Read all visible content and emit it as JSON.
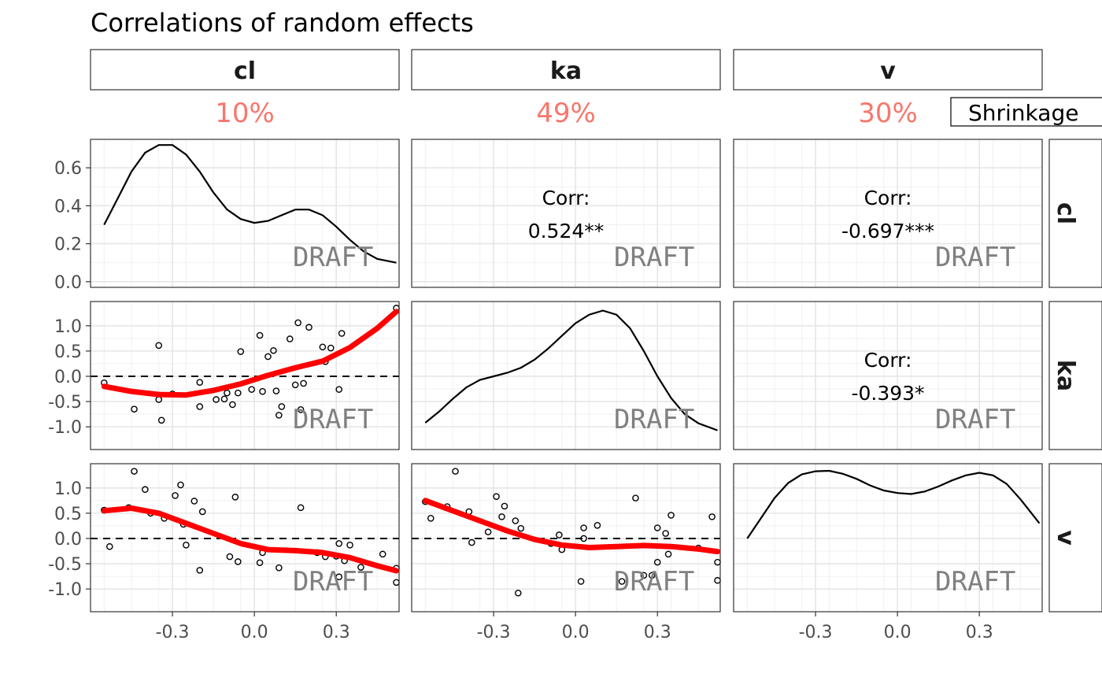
{
  "chart_data": {
    "type": "scatter",
    "title": "Correlations of random effects",
    "variables": [
      "cl",
      "ka",
      "v"
    ],
    "shrinkage": [
      "10%",
      "49%",
      "30%"
    ],
    "legend_label": "Shrinkage",
    "watermark": "DRAFT",
    "corr_label": "Corr:",
    "correlations": [
      {
        "row": "cl",
        "col": "ka",
        "value": "0.524**"
      },
      {
        "row": "cl",
        "col": "v",
        "value": "-0.697***"
      },
      {
        "row": "ka",
        "col": "v",
        "value": "-0.393*"
      }
    ],
    "x_ticks": [
      "-0.3",
      "0.0",
      "0.3"
    ],
    "x_tick_values": [
      -0.3,
      0.0,
      0.3
    ],
    "xlim": [
      -0.6,
      0.53
    ],
    "row_ylim": [
      [
        -0.03,
        0.75
      ],
      [
        -1.45,
        1.48
      ],
      [
        -1.45,
        1.48
      ]
    ],
    "y_ticks_density": [
      "0.0",
      "0.2",
      "0.4",
      "0.6"
    ],
    "y_tick_values_density": [
      0.0,
      0.2,
      0.4,
      0.6
    ],
    "y_ticks_scatter": [
      "-1.0",
      "-0.5",
      "0.0",
      "0.5",
      "1.0"
    ],
    "y_tick_values_scatter": [
      -1.0,
      -0.5,
      0.0,
      0.5,
      1.0
    ],
    "grid": true,
    "smooth_color": "#ff0000",
    "shrinkage_color": "#F8766D",
    "densities": {
      "cl": [
        [
          -0.55,
          0.3
        ],
        [
          -0.5,
          0.44
        ],
        [
          -0.45,
          0.58
        ],
        [
          -0.4,
          0.68
        ],
        [
          -0.35,
          0.72
        ],
        [
          -0.3,
          0.72
        ],
        [
          -0.25,
          0.67
        ],
        [
          -0.2,
          0.58
        ],
        [
          -0.15,
          0.47
        ],
        [
          -0.1,
          0.38
        ],
        [
          -0.05,
          0.33
        ],
        [
          0.0,
          0.31
        ],
        [
          0.05,
          0.32
        ],
        [
          0.1,
          0.35
        ],
        [
          0.15,
          0.38
        ],
        [
          0.2,
          0.38
        ],
        [
          0.25,
          0.35
        ],
        [
          0.3,
          0.29
        ],
        [
          0.35,
          0.22
        ],
        [
          0.4,
          0.16
        ],
        [
          0.45,
          0.12
        ],
        [
          0.52,
          0.1
        ]
      ],
      "ka": [
        [
          -0.55,
          -0.92
        ],
        [
          -0.5,
          -0.7
        ],
        [
          -0.45,
          -0.45
        ],
        [
          -0.4,
          -0.22
        ],
        [
          -0.35,
          -0.07
        ],
        [
          -0.3,
          0.0
        ],
        [
          -0.25,
          0.07
        ],
        [
          -0.2,
          0.17
        ],
        [
          -0.15,
          0.33
        ],
        [
          -0.1,
          0.55
        ],
        [
          -0.05,
          0.8
        ],
        [
          0.0,
          1.05
        ],
        [
          0.05,
          1.22
        ],
        [
          0.1,
          1.3
        ],
        [
          0.15,
          1.22
        ],
        [
          0.2,
          0.95
        ],
        [
          0.25,
          0.5
        ],
        [
          0.3,
          0.0
        ],
        [
          0.35,
          -0.43
        ],
        [
          0.4,
          -0.75
        ],
        [
          0.45,
          -0.93
        ],
        [
          0.52,
          -1.07
        ]
      ],
      "v": [
        [
          -0.55,
          0.0
        ],
        [
          -0.5,
          0.4
        ],
        [
          -0.45,
          0.8
        ],
        [
          -0.4,
          1.1
        ],
        [
          -0.35,
          1.27
        ],
        [
          -0.3,
          1.33
        ],
        [
          -0.25,
          1.34
        ],
        [
          -0.2,
          1.28
        ],
        [
          -0.15,
          1.18
        ],
        [
          -0.1,
          1.05
        ],
        [
          -0.05,
          0.95
        ],
        [
          0.0,
          0.9
        ],
        [
          0.05,
          0.88
        ],
        [
          0.1,
          0.93
        ],
        [
          0.15,
          1.03
        ],
        [
          0.2,
          1.15
        ],
        [
          0.25,
          1.25
        ],
        [
          0.3,
          1.3
        ],
        [
          0.35,
          1.25
        ],
        [
          0.4,
          1.08
        ],
        [
          0.45,
          0.78
        ],
        [
          0.52,
          0.3
        ]
      ]
    },
    "scatter": {
      "ka_vs_cl": {
        "points": [
          [
            -0.55,
            -0.13
          ],
          [
            -0.44,
            -0.65
          ],
          [
            -0.35,
            0.61
          ],
          [
            -0.35,
            -0.46
          ],
          [
            -0.34,
            -0.87
          ],
          [
            -0.3,
            -0.35
          ],
          [
            -0.2,
            -0.12
          ],
          [
            -0.2,
            -0.6
          ],
          [
            -0.14,
            -0.46
          ],
          [
            -0.11,
            -0.45
          ],
          [
            -0.1,
            -0.33
          ],
          [
            -0.08,
            -0.56
          ],
          [
            -0.06,
            -0.33
          ],
          [
            -0.05,
            0.49
          ],
          [
            -0.01,
            -0.26
          ],
          [
            0.02,
            0.81
          ],
          [
            0.03,
            -0.3
          ],
          [
            0.05,
            0.39
          ],
          [
            0.07,
            0.51
          ],
          [
            0.08,
            -0.29
          ],
          [
            0.09,
            -0.77
          ],
          [
            0.1,
            -0.6
          ],
          [
            0.13,
            0.74
          ],
          [
            0.15,
            -0.17
          ],
          [
            0.16,
            1.06
          ],
          [
            0.17,
            -0.66
          ],
          [
            0.18,
            -0.14
          ],
          [
            0.2,
            0.97
          ],
          [
            0.25,
            0.58
          ],
          [
            0.26,
            0.29
          ],
          [
            0.28,
            0.56
          ],
          [
            0.31,
            -0.26
          ],
          [
            0.32,
            0.85
          ],
          [
            0.52,
            1.35
          ]
        ],
        "smooth": [
          [
            -0.55,
            -0.2
          ],
          [
            -0.45,
            -0.3
          ],
          [
            -0.35,
            -0.36
          ],
          [
            -0.25,
            -0.37
          ],
          [
            -0.15,
            -0.28
          ],
          [
            -0.05,
            -0.15
          ],
          [
            0.05,
            0.02
          ],
          [
            0.15,
            0.17
          ],
          [
            0.25,
            0.3
          ],
          [
            0.35,
            0.57
          ],
          [
            0.45,
            0.95
          ],
          [
            0.52,
            1.28
          ]
        ]
      },
      "v_vs_cl": {
        "points": [
          [
            -0.55,
            0.56
          ],
          [
            -0.53,
            -0.16
          ],
          [
            -0.46,
            0.61
          ],
          [
            -0.44,
            1.33
          ],
          [
            -0.4,
            0.97
          ],
          [
            -0.38,
            0.5
          ],
          [
            -0.33,
            0.4
          ],
          [
            -0.29,
            0.85
          ],
          [
            -0.27,
            1.06
          ],
          [
            -0.26,
            0.28
          ],
          [
            -0.25,
            -0.13
          ],
          [
            -0.22,
            0.74
          ],
          [
            -0.2,
            -0.63
          ],
          [
            -0.19,
            0.53
          ],
          [
            -0.09,
            -0.36
          ],
          [
            -0.07,
            0.82
          ],
          [
            -0.06,
            -0.46
          ],
          [
            0.02,
            -0.48
          ],
          [
            0.03,
            -0.28
          ],
          [
            0.09,
            -0.58
          ],
          [
            0.17,
            0.61
          ],
          [
            0.23,
            -0.28
          ],
          [
            0.26,
            -0.36
          ],
          [
            0.3,
            -0.35
          ],
          [
            0.31,
            -0.76
          ],
          [
            0.31,
            -0.1
          ],
          [
            0.33,
            -0.44
          ],
          [
            0.35,
            -0.13
          ],
          [
            0.39,
            -0.57
          ],
          [
            0.47,
            -0.31
          ],
          [
            0.52,
            -0.59
          ],
          [
            0.52,
            -0.87
          ]
        ],
        "smooth": [
          [
            -0.55,
            0.55
          ],
          [
            -0.45,
            0.6
          ],
          [
            -0.35,
            0.5
          ],
          [
            -0.25,
            0.3
          ],
          [
            -0.15,
            0.1
          ],
          [
            -0.05,
            -0.1
          ],
          [
            0.05,
            -0.22
          ],
          [
            0.15,
            -0.24
          ],
          [
            0.25,
            -0.28
          ],
          [
            0.35,
            -0.38
          ],
          [
            0.45,
            -0.54
          ],
          [
            0.52,
            -0.64
          ]
        ]
      },
      "v_vs_ka": {
        "points": [
          [
            -0.55,
            0.73
          ],
          [
            -0.53,
            0.4
          ],
          [
            -0.47,
            0.63
          ],
          [
            -0.44,
            1.33
          ],
          [
            -0.39,
            0.53
          ],
          [
            -0.38,
            -0.08
          ],
          [
            -0.32,
            0.13
          ],
          [
            -0.29,
            0.83
          ],
          [
            -0.27,
            0.43
          ],
          [
            -0.26,
            0.64
          ],
          [
            -0.22,
            0.35
          ],
          [
            -0.2,
            0.2
          ],
          [
            -0.21,
            -1.08
          ],
          [
            -0.09,
            -0.1
          ],
          [
            -0.06,
            0.07
          ],
          [
            -0.05,
            -0.22
          ],
          [
            0.02,
            -0.85
          ],
          [
            0.03,
            0.0
          ],
          [
            0.03,
            0.21
          ],
          [
            0.08,
            0.26
          ],
          [
            0.17,
            -0.85
          ],
          [
            0.22,
            0.8
          ],
          [
            0.25,
            -0.73
          ],
          [
            0.28,
            -0.73
          ],
          [
            0.3,
            0.21
          ],
          [
            0.3,
            -0.47
          ],
          [
            0.33,
            0.1
          ],
          [
            0.34,
            -0.31
          ],
          [
            0.35,
            0.46
          ],
          [
            0.45,
            -0.19
          ],
          [
            0.5,
            0.43
          ],
          [
            0.52,
            -0.47
          ],
          [
            0.52,
            -0.83
          ]
        ],
        "smooth": [
          [
            -0.55,
            0.75
          ],
          [
            -0.45,
            0.55
          ],
          [
            -0.35,
            0.35
          ],
          [
            -0.25,
            0.15
          ],
          [
            -0.15,
            -0.02
          ],
          [
            -0.05,
            -0.13
          ],
          [
            0.05,
            -0.18
          ],
          [
            0.15,
            -0.16
          ],
          [
            0.25,
            -0.14
          ],
          [
            0.35,
            -0.16
          ],
          [
            0.45,
            -0.21
          ],
          [
            0.52,
            -0.26
          ]
        ]
      }
    }
  }
}
